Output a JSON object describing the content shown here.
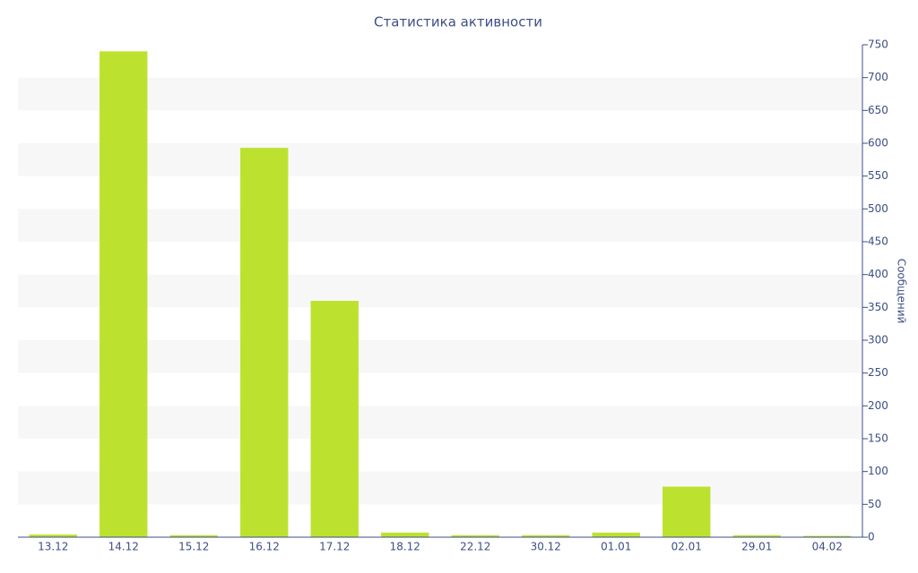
{
  "chart_data": {
    "type": "bar",
    "title": "Статистика активности",
    "y_label": "Сообщений",
    "categories": [
      "13.12",
      "14.12",
      "15.12",
      "16.12",
      "17.12",
      "18.12",
      "22.12",
      "30.12",
      "01.01",
      "02.01",
      "29.01",
      "04.02"
    ],
    "values": [
      4,
      740,
      3,
      593,
      360,
      7,
      3,
      3,
      7,
      77,
      3,
      2
    ],
    "color": "#bce22f",
    "ylim": [
      0,
      750
    ],
    "yticks": [
      0,
      50,
      100,
      150,
      200,
      250,
      300,
      350,
      400,
      450,
      500,
      550,
      600,
      650,
      700,
      750
    ],
    "grid": true,
    "y_axis_side": "right"
  }
}
